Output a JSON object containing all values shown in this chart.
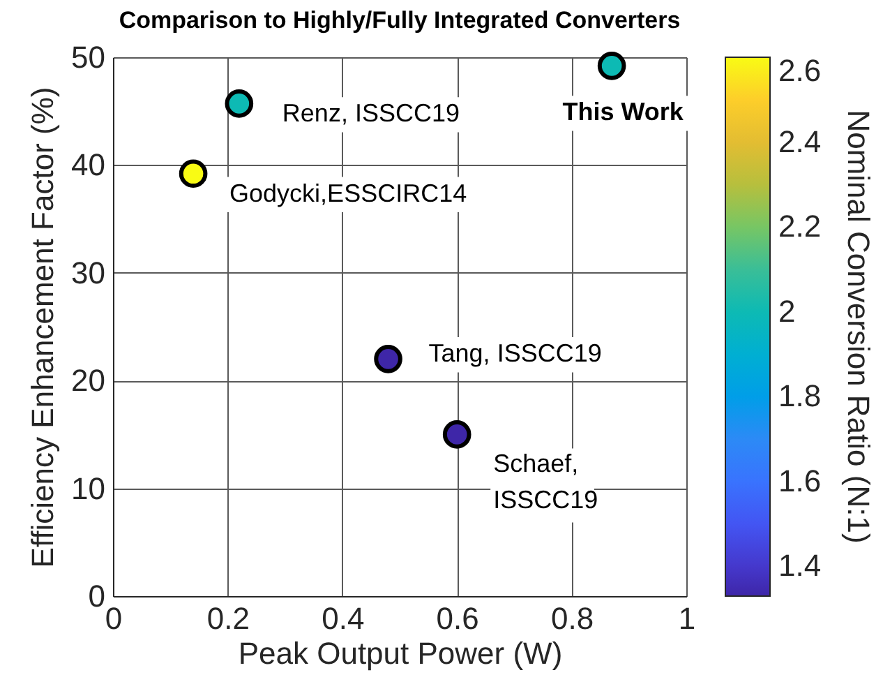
{
  "chart_data": {
    "type": "scatter",
    "title": "Comparison to Highly/Fully Integrated Converters",
    "xlabel": "Peak Output Power (W)",
    "ylabel": "Efficiency Enhancement Factor (%)",
    "clabel": "Nominal Conversion Ratio (N:1)",
    "x": [
      0.14,
      0.22,
      0.48,
      0.6,
      0.87
    ],
    "values": [
      39.2,
      45.7,
      22,
      15,
      49.2
    ],
    "cvalues": [
      2.6,
      2,
      1.33,
      1.33,
      2
    ],
    "clim": [
      1.33,
      2.6
    ],
    "cticks": [
      1.4,
      1.6,
      1.8,
      2,
      2.2,
      2.4,
      2.6
    ],
    "xlim": [
      0,
      1
    ],
    "xticks": [
      0,
      0.2,
      0.4,
      0.6,
      0.8,
      1
    ],
    "ylim": [
      0,
      50
    ],
    "yticks": [
      0,
      10,
      20,
      30,
      40,
      50
    ],
    "grid": true,
    "marker": "circle",
    "annotations": [
      {
        "text": "Godycki,ESSCIRC14",
        "x": 0.14,
        "y": 39.2
      },
      {
        "text": "Renz, ISSCC19",
        "x": 0.22,
        "y": 45.7
      },
      {
        "text": "Tang, ISSCC19",
        "x": 0.48,
        "y": 22
      },
      {
        "text": "Schaef,\nISSCC19",
        "x": 0.6,
        "y": 15
      },
      {
        "text": "This Work",
        "x": 0.87,
        "y": 49.2
      }
    ]
  }
}
